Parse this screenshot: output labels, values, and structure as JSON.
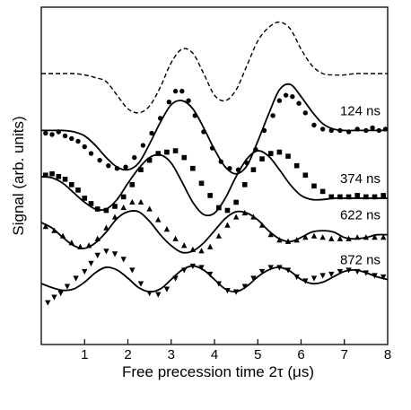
{
  "chart_data": {
    "type": "scatter",
    "xlabel": "Free precession time 2τ (μs)",
    "ylabel": "Signal (arb. units)",
    "xlim": [
      0,
      8
    ],
    "xticks": [
      1,
      2,
      3,
      4,
      5,
      6,
      7,
      8
    ],
    "yticks_labeled": false,
    "grid": false,
    "legend": "inline labels at right",
    "reference": {
      "style": "dashed",
      "x": [
        0.0,
        0.25,
        0.5,
        0.75,
        1.0,
        1.25,
        1.5,
        1.75,
        2.0,
        2.25,
        2.5,
        2.75,
        3.0,
        3.25,
        3.5,
        3.75,
        4.0,
        4.25,
        4.5,
        4.75,
        5.0,
        5.25,
        5.5,
        5.75,
        6.0,
        6.25,
        6.5,
        6.75,
        7.0,
        7.25,
        7.5,
        7.75,
        8.0
      ],
      "y": [
        8.1,
        8.1,
        8.1,
        8.1,
        8.05,
        7.95,
        7.8,
        7.3,
        6.8,
        6.65,
        6.9,
        7.6,
        8.5,
        9.0,
        8.85,
        8.1,
        7.3,
        7.1,
        7.5,
        8.4,
        9.3,
        9.8,
        10.0,
        9.75,
        9.0,
        8.4,
        8.1,
        8.05,
        8.05,
        8.1,
        8.1,
        8.1,
        8.1
      ]
    },
    "series": [
      {
        "name": "124 ns",
        "marker": "circle",
        "fit_x": [
          0.0,
          0.25,
          0.5,
          0.75,
          1.0,
          1.25,
          1.5,
          1.75,
          2.0,
          2.25,
          2.5,
          2.75,
          3.0,
          3.25,
          3.5,
          3.75,
          4.0,
          4.25,
          4.5,
          4.75,
          5.0,
          5.25,
          5.5,
          5.75,
          6.0,
          6.25,
          6.5,
          6.75,
          7.0,
          7.25,
          7.5,
          7.75,
          8.0
        ],
        "fit_y": [
          6.0,
          6.0,
          6.0,
          5.95,
          5.8,
          5.45,
          5.0,
          4.65,
          4.55,
          4.8,
          5.5,
          6.3,
          6.95,
          7.1,
          6.8,
          6.1,
          5.3,
          4.65,
          4.4,
          4.7,
          5.6,
          6.6,
          7.5,
          7.7,
          7.25,
          6.7,
          6.25,
          6.05,
          6.0,
          6.0,
          6.0,
          6.0,
          6.0
        ],
        "points_x": [
          0.1,
          0.25,
          0.4,
          0.55,
          0.7,
          0.85,
          1.0,
          1.15,
          1.35,
          1.55,
          1.75,
          1.95,
          2.15,
          2.35,
          2.55,
          2.75,
          2.95,
          3.1,
          3.25,
          3.4,
          3.55,
          3.75,
          3.95,
          4.15,
          4.35,
          4.55,
          4.75,
          4.95,
          5.15,
          5.35,
          5.5,
          5.65,
          5.8,
          5.95,
          6.1,
          6.3,
          6.5,
          6.7,
          6.9,
          7.1,
          7.3,
          7.5,
          7.65,
          7.8,
          7.95
        ],
        "points_y": [
          5.9,
          5.85,
          5.95,
          5.8,
          5.7,
          5.6,
          5.4,
          5.15,
          4.9,
          4.7,
          4.6,
          4.65,
          5.0,
          5.45,
          5.9,
          6.45,
          7.05,
          7.45,
          7.45,
          7.1,
          6.55,
          5.95,
          5.35,
          4.85,
          4.6,
          4.55,
          4.8,
          5.3,
          6.0,
          6.55,
          7.1,
          7.3,
          7.25,
          7.0,
          6.65,
          6.2,
          6.05,
          6.0,
          6.0,
          5.95,
          6.05,
          6.0,
          6.1,
          6.0,
          6.05
        ]
      },
      {
        "name": "374 ns",
        "marker": "square",
        "fit_x": [
          0.0,
          0.25,
          0.5,
          0.75,
          1.0,
          1.25,
          1.5,
          1.75,
          2.0,
          2.25,
          2.5,
          2.75,
          3.0,
          3.25,
          3.5,
          3.75,
          4.0,
          4.25,
          4.5,
          4.75,
          5.0,
          5.25,
          5.5,
          5.75,
          6.0,
          6.25,
          6.5,
          6.75,
          7.0,
          7.25,
          7.5,
          7.75,
          8.0
        ],
        "fit_y": [
          4.3,
          4.25,
          4.05,
          3.7,
          3.35,
          3.1,
          3.1,
          3.45,
          4.05,
          4.6,
          5.0,
          5.1,
          4.8,
          4.1,
          3.35,
          2.9,
          2.95,
          3.5,
          4.3,
          4.95,
          5.25,
          5.05,
          4.55,
          4.0,
          3.6,
          3.45,
          3.45,
          3.5,
          3.5,
          3.5,
          3.5,
          3.5,
          3.5
        ],
        "points_x": [
          0.1,
          0.25,
          0.4,
          0.55,
          0.7,
          0.85,
          1.0,
          1.15,
          1.3,
          1.5,
          1.7,
          1.9,
          2.1,
          2.3,
          2.5,
          2.7,
          2.9,
          3.1,
          3.3,
          3.5,
          3.7,
          3.9,
          4.1,
          4.3,
          4.5,
          4.7,
          4.9,
          5.1,
          5.3,
          5.5,
          5.7,
          5.9,
          6.1,
          6.3,
          6.5,
          6.7,
          6.9,
          7.1,
          7.3,
          7.5,
          7.7,
          7.9
        ],
        "points_y": [
          4.35,
          4.4,
          4.3,
          4.2,
          4.0,
          3.8,
          3.5,
          3.3,
          3.1,
          3.05,
          3.2,
          3.55,
          4.0,
          4.55,
          4.9,
          5.15,
          5.2,
          5.25,
          5.0,
          4.6,
          4.05,
          3.6,
          3.15,
          3.05,
          3.35,
          4.0,
          4.55,
          4.95,
          5.15,
          5.2,
          5.05,
          4.7,
          4.35,
          3.95,
          3.75,
          3.55,
          3.55,
          3.55,
          3.6,
          3.55,
          3.55,
          3.6
        ]
      },
      {
        "name": "622 ns",
        "marker": "triangle-up",
        "fit_x": [
          0.0,
          0.25,
          0.5,
          0.75,
          1.0,
          1.25,
          1.5,
          1.75,
          2.0,
          2.25,
          2.5,
          2.75,
          3.0,
          3.25,
          3.5,
          3.75,
          4.0,
          4.25,
          4.5,
          4.75,
          5.0,
          5.25,
          5.5,
          5.75,
          6.0,
          6.25,
          6.5,
          6.75,
          7.0,
          7.25,
          7.5,
          7.75,
          8.0
        ],
        "fit_y": [
          2.6,
          2.4,
          2.05,
          1.75,
          1.65,
          1.85,
          2.25,
          2.75,
          3.0,
          3.0,
          2.65,
          2.15,
          1.75,
          1.5,
          1.55,
          1.85,
          2.3,
          2.75,
          3.0,
          2.95,
          2.7,
          2.3,
          2.0,
          1.9,
          2.05,
          2.25,
          2.3,
          2.25,
          2.05,
          2.0,
          2.05,
          2.15,
          2.15
        ],
        "points_x": [
          0.1,
          0.3,
          0.5,
          0.7,
          0.9,
          1.1,
          1.3,
          1.5,
          1.7,
          1.9,
          2.1,
          2.3,
          2.5,
          2.7,
          2.9,
          3.1,
          3.3,
          3.5,
          3.7,
          3.9,
          4.1,
          4.3,
          4.5,
          4.7,
          4.9,
          5.1,
          5.3,
          5.5,
          5.7,
          5.9,
          6.1,
          6.3,
          6.5,
          6.7,
          6.9,
          7.1,
          7.3,
          7.5,
          7.7,
          7.9
        ],
        "points_y": [
          2.45,
          2.3,
          2.1,
          1.85,
          1.7,
          1.75,
          2.0,
          2.4,
          2.8,
          3.15,
          3.35,
          3.35,
          3.1,
          2.7,
          2.35,
          2.0,
          1.75,
          1.6,
          1.55,
          1.7,
          2.1,
          2.5,
          2.8,
          2.95,
          2.8,
          2.5,
          2.15,
          1.95,
          1.9,
          1.95,
          2.05,
          2.1,
          2.05,
          2.0,
          2.0,
          2.0,
          2.05,
          2.05,
          2.05,
          2.05
        ]
      },
      {
        "name": "872 ns",
        "marker": "triangle-down",
        "fit_x": [
          0.0,
          0.25,
          0.5,
          0.75,
          1.0,
          1.25,
          1.5,
          1.75,
          2.0,
          2.25,
          2.5,
          2.75,
          3.0,
          3.25,
          3.5,
          3.75,
          4.0,
          4.25,
          4.5,
          4.75,
          5.0,
          5.25,
          5.5,
          5.75,
          6.0,
          6.25,
          6.5,
          6.75,
          7.0,
          7.25,
          7.5,
          7.75,
          8.0
        ],
        "fit_y": [
          0.35,
          0.2,
          0.1,
          0.15,
          0.4,
          0.75,
          0.95,
          0.85,
          0.55,
          0.2,
          0.05,
          0.15,
          0.5,
          0.85,
          1.0,
          0.85,
          0.5,
          0.15,
          0.05,
          0.25,
          0.6,
          0.85,
          0.95,
          0.8,
          0.5,
          0.35,
          0.4,
          0.6,
          0.8,
          0.85,
          0.75,
          0.6,
          0.5
        ],
        "points_x": [
          0.15,
          0.3,
          0.45,
          0.6,
          0.8,
          1.0,
          1.15,
          1.3,
          1.5,
          1.7,
          1.9,
          2.1,
          2.3,
          2.5,
          2.7,
          2.9,
          3.1,
          3.3,
          3.5,
          3.7,
          3.9,
          4.1,
          4.3,
          4.5,
          4.7,
          4.9,
          5.1,
          5.3,
          5.5,
          5.7,
          5.9,
          6.1,
          6.3,
          6.5,
          6.7,
          6.9,
          7.1,
          7.3,
          7.5,
          7.7,
          7.9
        ],
        "points_y": [
          -0.35,
          -0.15,
          0.0,
          0.25,
          0.55,
          0.8,
          1.1,
          1.4,
          1.55,
          1.45,
          1.25,
          0.85,
          0.35,
          0.0,
          -0.05,
          0.15,
          0.55,
          0.85,
          1.0,
          0.95,
          0.7,
          0.35,
          0.1,
          0.05,
          0.25,
          0.55,
          0.8,
          0.95,
          0.95,
          0.85,
          0.6,
          0.45,
          0.55,
          0.65,
          0.7,
          0.8,
          0.85,
          0.8,
          0.75,
          0.65,
          0.6
        ]
      }
    ]
  }
}
